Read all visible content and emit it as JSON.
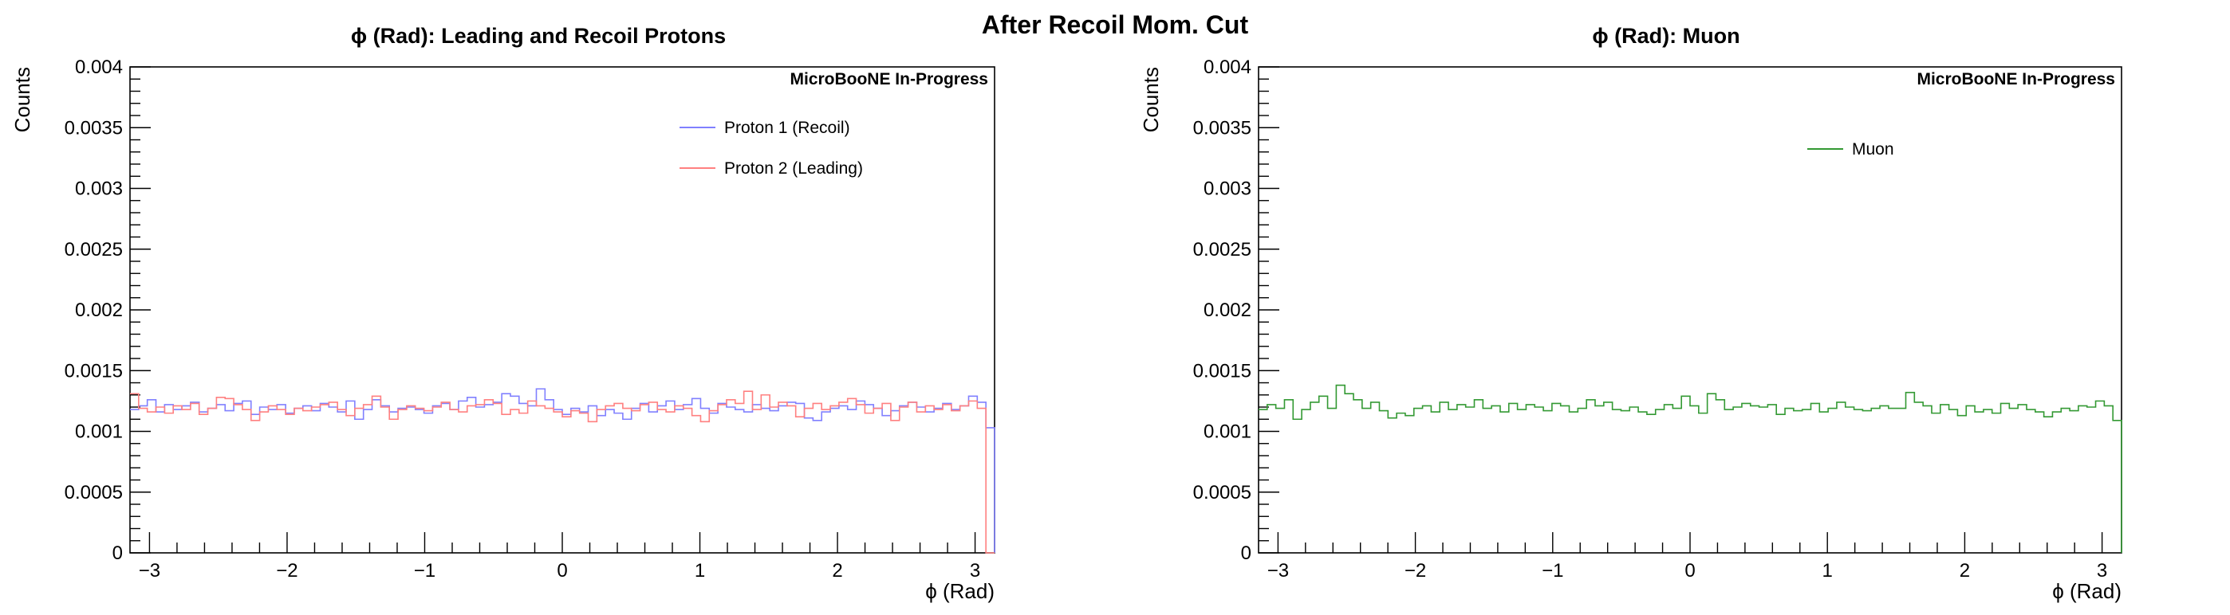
{
  "figure_title": "After Recoil Mom. Cut",
  "chart_data": [
    {
      "type": "line",
      "title": "ϕ (Rad): Leading and Recoil Protons",
      "xlabel": "ϕ (Rad)",
      "ylabel": "Counts",
      "watermark": "MicroBooNE In-Progress",
      "xlim": [
        -3.1416,
        3.1416
      ],
      "ylim": [
        0,
        0.004
      ],
      "x_ticks": [
        -3,
        -2,
        -1,
        0,
        1,
        2,
        3
      ],
      "x_tick_labels": [
        "−3",
        "−2",
        "−1",
        "0",
        "1",
        "2",
        "3"
      ],
      "y_ticks": [
        0,
        0.0005,
        0.001,
        0.0015,
        0.002,
        0.0025,
        0.003,
        0.0035,
        0.004
      ],
      "y_tick_labels": [
        "0",
        "0.0005",
        "0.001",
        "0.0015",
        "0.002",
        "0.0025",
        "0.003",
        "0.0035",
        "0.004"
      ],
      "grid": false,
      "legend_position": "top-right",
      "n_bins": 100,
      "series": [
        {
          "name": "Proton 1 (Recoil)",
          "color": "#8080ff",
          "style": "step",
          "values": [
            0.00118,
            0.00121,
            0.00126,
            0.00116,
            0.00122,
            0.00118,
            0.00121,
            0.00124,
            0.00116,
            0.00119,
            0.00122,
            0.00117,
            0.00123,
            0.00125,
            0.00114,
            0.0012,
            0.00118,
            0.00122,
            0.00115,
            0.00119,
            0.00121,
            0.00117,
            0.00123,
            0.0012,
            0.00116,
            0.00125,
            0.0011,
            0.00118,
            0.00126,
            0.00121,
            0.00116,
            0.00119,
            0.0012,
            0.00118,
            0.00115,
            0.00121,
            0.00123,
            0.00118,
            0.00125,
            0.00128,
            0.0012,
            0.00122,
            0.00124,
            0.00131,
            0.00129,
            0.00123,
            0.00121,
            0.00135,
            0.00126,
            0.00118,
            0.00114,
            0.00119,
            0.00116,
            0.00121,
            0.00113,
            0.00118,
            0.00115,
            0.0011,
            0.00119,
            0.00123,
            0.00116,
            0.00121,
            0.00125,
            0.00118,
            0.00122,
            0.00127,
            0.00119,
            0.00115,
            0.00123,
            0.0012,
            0.00118,
            0.00116,
            0.00122,
            0.00119,
            0.00117,
            0.00121,
            0.00124,
            0.00123,
            0.00111,
            0.00109,
            0.00116,
            0.00119,
            0.00121,
            0.00118,
            0.00125,
            0.00122,
            0.00119,
            0.00113,
            0.00117,
            0.00121,
            0.00124,
            0.0012,
            0.00116,
            0.00119,
            0.00123,
            0.00118,
            0.00121,
            0.00129,
            0.00124,
            0.00103
          ]
        },
        {
          "name": "Proton 2 (Leading)",
          "color": "#ff8080",
          "style": "step",
          "values": [
            0.00131,
            0.00119,
            0.00116,
            0.0012,
            0.00115,
            0.00121,
            0.00118,
            0.00123,
            0.00114,
            0.00119,
            0.00128,
            0.00127,
            0.00122,
            0.00118,
            0.00109,
            0.00116,
            0.00121,
            0.00118,
            0.00114,
            0.00119,
            0.00117,
            0.0012,
            0.00122,
            0.00124,
            0.00118,
            0.00113,
            0.00119,
            0.00122,
            0.00129,
            0.0012,
            0.0011,
            0.00118,
            0.00121,
            0.00119,
            0.00117,
            0.0012,
            0.00124,
            0.00118,
            0.00116,
            0.00121,
            0.00122,
            0.00126,
            0.00123,
            0.00114,
            0.00118,
            0.00115,
            0.00125,
            0.00121,
            0.00119,
            0.00116,
            0.00112,
            0.00117,
            0.00115,
            0.00108,
            0.00118,
            0.00121,
            0.00123,
            0.00119,
            0.00117,
            0.00122,
            0.00124,
            0.00118,
            0.00116,
            0.00121,
            0.00119,
            0.00113,
            0.00108,
            0.00117,
            0.00122,
            0.00126,
            0.00123,
            0.00133,
            0.00118,
            0.0013,
            0.0012,
            0.00124,
            0.00121,
            0.00112,
            0.00119,
            0.00123,
            0.00118,
            0.00121,
            0.00124,
            0.00127,
            0.00122,
            0.00115,
            0.00119,
            0.00123,
            0.00109,
            0.0012,
            0.00124,
            0.00116,
            0.00121,
            0.00118,
            0.00122,
            0.00117,
            0.00121,
            0.00125,
            0.00119,
            0.0
          ]
        }
      ]
    },
    {
      "type": "line",
      "title": "ϕ (Rad): Muon",
      "xlabel": "ϕ (Rad)",
      "ylabel": "Counts",
      "watermark": "MicroBooNE In-Progress",
      "xlim": [
        -3.1416,
        3.1416
      ],
      "ylim": [
        0,
        0.004
      ],
      "x_ticks": [
        -3,
        -2,
        -1,
        0,
        1,
        2,
        3
      ],
      "x_tick_labels": [
        "−3",
        "−2",
        "−1",
        "0",
        "1",
        "2",
        "3"
      ],
      "y_ticks": [
        0,
        0.0005,
        0.001,
        0.0015,
        0.002,
        0.0025,
        0.003,
        0.0035,
        0.004
      ],
      "y_tick_labels": [
        "0",
        "0.0005",
        "0.001",
        "0.0015",
        "0.002",
        "0.0025",
        "0.003",
        "0.0035",
        "0.004"
      ],
      "grid": false,
      "legend_position": "top-right",
      "n_bins": 100,
      "series": [
        {
          "name": "Muon",
          "color": "#339933",
          "style": "step",
          "values": [
            0.00118,
            0.00122,
            0.00119,
            0.00126,
            0.0011,
            0.00118,
            0.00124,
            0.00129,
            0.00119,
            0.00138,
            0.00131,
            0.00126,
            0.00119,
            0.00124,
            0.00117,
            0.00111,
            0.00115,
            0.00113,
            0.00119,
            0.00121,
            0.00116,
            0.00124,
            0.00118,
            0.00122,
            0.0012,
            0.00126,
            0.00119,
            0.00121,
            0.00116,
            0.00123,
            0.00118,
            0.00122,
            0.0012,
            0.00117,
            0.00123,
            0.00121,
            0.00116,
            0.00119,
            0.00126,
            0.00121,
            0.00124,
            0.00118,
            0.00117,
            0.0012,
            0.00116,
            0.00114,
            0.00118,
            0.00122,
            0.00119,
            0.00129,
            0.00121,
            0.00115,
            0.00131,
            0.00126,
            0.00118,
            0.0012,
            0.00123,
            0.00121,
            0.0012,
            0.00122,
            0.00114,
            0.00119,
            0.00117,
            0.00118,
            0.00123,
            0.00116,
            0.00119,
            0.00124,
            0.0012,
            0.00118,
            0.00117,
            0.00119,
            0.00121,
            0.00119,
            0.00119,
            0.00132,
            0.00124,
            0.00121,
            0.00115,
            0.00122,
            0.00118,
            0.00113,
            0.00121,
            0.00116,
            0.00118,
            0.00115,
            0.00123,
            0.00119,
            0.00122,
            0.00118,
            0.00116,
            0.00112,
            0.00116,
            0.00119,
            0.00117,
            0.00121,
            0.0012,
            0.00125,
            0.00121,
            0.00109
          ]
        }
      ]
    }
  ]
}
